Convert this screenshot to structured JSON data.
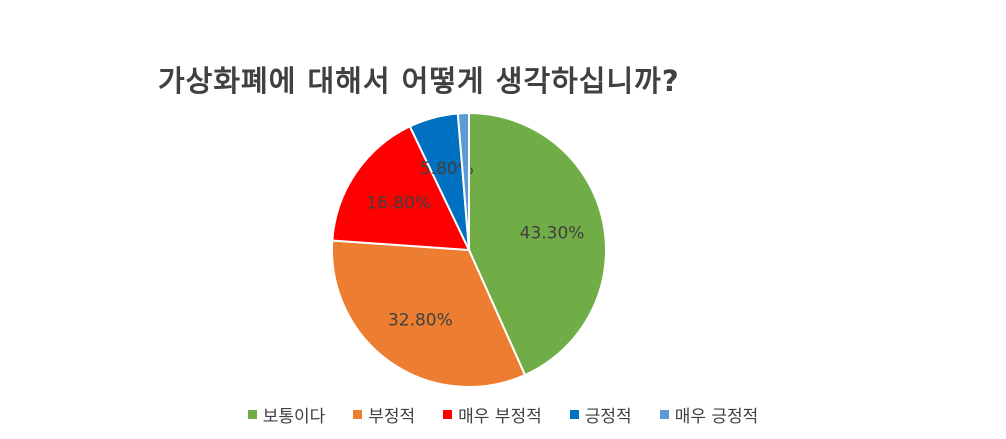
{
  "chart_data": {
    "type": "pie",
    "title": "가상화폐에 대해서 어떻게 생각하십니까?",
    "categories": [
      "보통이다",
      "부정적",
      "매우 부정적",
      "긍정적",
      "매우 긍정적"
    ],
    "values": [
      43.3,
      32.8,
      16.8,
      5.8,
      1.3
    ],
    "data_labels": [
      "43.30%",
      "32.80%",
      "16.80%",
      "5.80%",
      ""
    ],
    "colors": [
      "#70AD47",
      "#ED7D31",
      "#FF0000",
      "#0070C0",
      "#5B9BD5"
    ],
    "legend_position": "bottom"
  }
}
